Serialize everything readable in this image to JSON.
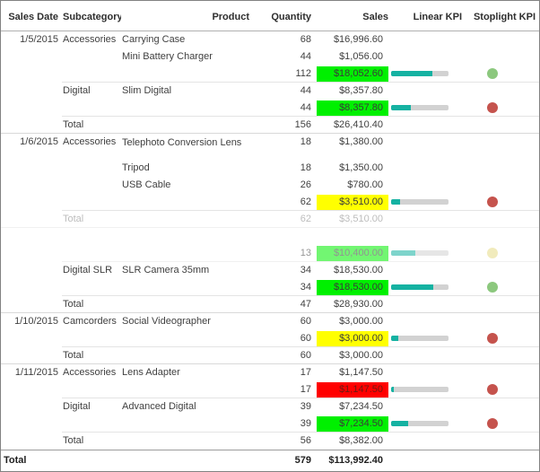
{
  "table": {
    "columns": [
      {
        "label": "Sales Date"
      },
      {
        "label": "Subcategory"
      },
      {
        "label": "Product"
      },
      {
        "label": "Quantity"
      },
      {
        "label": "Sales"
      },
      {
        "label": "Linear KPI"
      },
      {
        "label": "Stoplight KPI"
      }
    ],
    "colors": {
      "kpi_bar_fill": "#15b2a2",
      "kpi_bar_track": "#d2d2d2",
      "highlight_green": "#00f000",
      "highlight_yellow": "#ffff00",
      "highlight_red": "#ff0000",
      "dot_green": "#8cc87e",
      "dot_red": "#c5534d",
      "dot_yellow": "#e7db87"
    },
    "rows": [
      {
        "date": "1/5/2015",
        "subcategory": "Accessories",
        "product": "Carrying Case",
        "qty": "68",
        "sales": "$16,996.60"
      },
      {
        "product": "Mini Battery Charger",
        "qty": "44",
        "sales": "$1,056.00"
      },
      {
        "qty": "112",
        "sales": "$18,052.60",
        "highlight": "green",
        "bar": 72,
        "dot": "green",
        "border": "group"
      },
      {
        "subcategory": "Digital",
        "product": "Slim Digital",
        "qty": "44",
        "sales": "$8,357.80"
      },
      {
        "qty": "44",
        "sales": "$8,357.80",
        "highlight": "green",
        "bar": 35,
        "dot": "red",
        "border": "group"
      },
      {
        "subcategory": "Total",
        "qty": "156",
        "sales": "$26,410.40",
        "border": "section"
      },
      {
        "date": "1/6/2015",
        "subcategory": "Accessories",
        "product": "Telephoto Conversion Lens",
        "qty": "18",
        "sales": "$1,380.00",
        "tall": true
      },
      {
        "product": "Tripod",
        "qty": "18",
        "sales": "$1,350.00"
      },
      {
        "product": "USB Cable",
        "qty": "26",
        "sales": "$780.00"
      },
      {
        "qty": "62",
        "sales": "$3,510.00",
        "highlight": "yellow",
        "bar": 15,
        "dot": "red",
        "border": "group"
      },
      {
        "subcategory": "Total",
        "qty": "62",
        "sales": "$3,510.00",
        "border": "section",
        "faded": 0.35
      },
      {},
      {
        "qty": "13",
        "sales": "$10,400.00",
        "highlight": "green",
        "bar": 42,
        "dot": "yellow",
        "border": "group",
        "faded": 0.55
      },
      {
        "subcategory": "Digital SLR",
        "product": "SLR Camera 35mm",
        "qty": "34",
        "sales": "$18,530.00"
      },
      {
        "qty": "34",
        "sales": "$18,530.00",
        "highlight": "green",
        "bar": 73,
        "dot": "green",
        "border": "group"
      },
      {
        "subcategory": "Total",
        "qty": "47",
        "sales": "$28,930.00",
        "border": "section"
      },
      {
        "date": "1/10/2015",
        "subcategory": "Camcorders",
        "product": "Social Videographer",
        "qty": "60",
        "sales": "$3,000.00"
      },
      {
        "qty": "60",
        "sales": "$3,000.00",
        "highlight": "yellow",
        "bar": 12,
        "dot": "red",
        "border": "group"
      },
      {
        "subcategory": "Total",
        "qty": "60",
        "sales": "$3,000.00",
        "border": "section"
      },
      {
        "date": "1/11/2015",
        "subcategory": "Accessories",
        "product": "Lens Adapter",
        "qty": "17",
        "sales": "$1,147.50"
      },
      {
        "qty": "17",
        "sales": "$1,147.50",
        "highlight": "red",
        "bar": 5,
        "dot": "red",
        "border": "group"
      },
      {
        "subcategory": "Digital",
        "product": "Advanced Digital",
        "qty": "39",
        "sales": "$7,234.50"
      },
      {
        "qty": "39",
        "sales": "$7,234.50",
        "highlight": "green",
        "bar": 29,
        "dot": "red",
        "border": "group"
      },
      {
        "subcategory": "Total",
        "qty": "56",
        "sales": "$8,382.00"
      }
    ],
    "grand_total": {
      "label": "Total",
      "qty": "579",
      "sales": "$113,992.40"
    }
  }
}
